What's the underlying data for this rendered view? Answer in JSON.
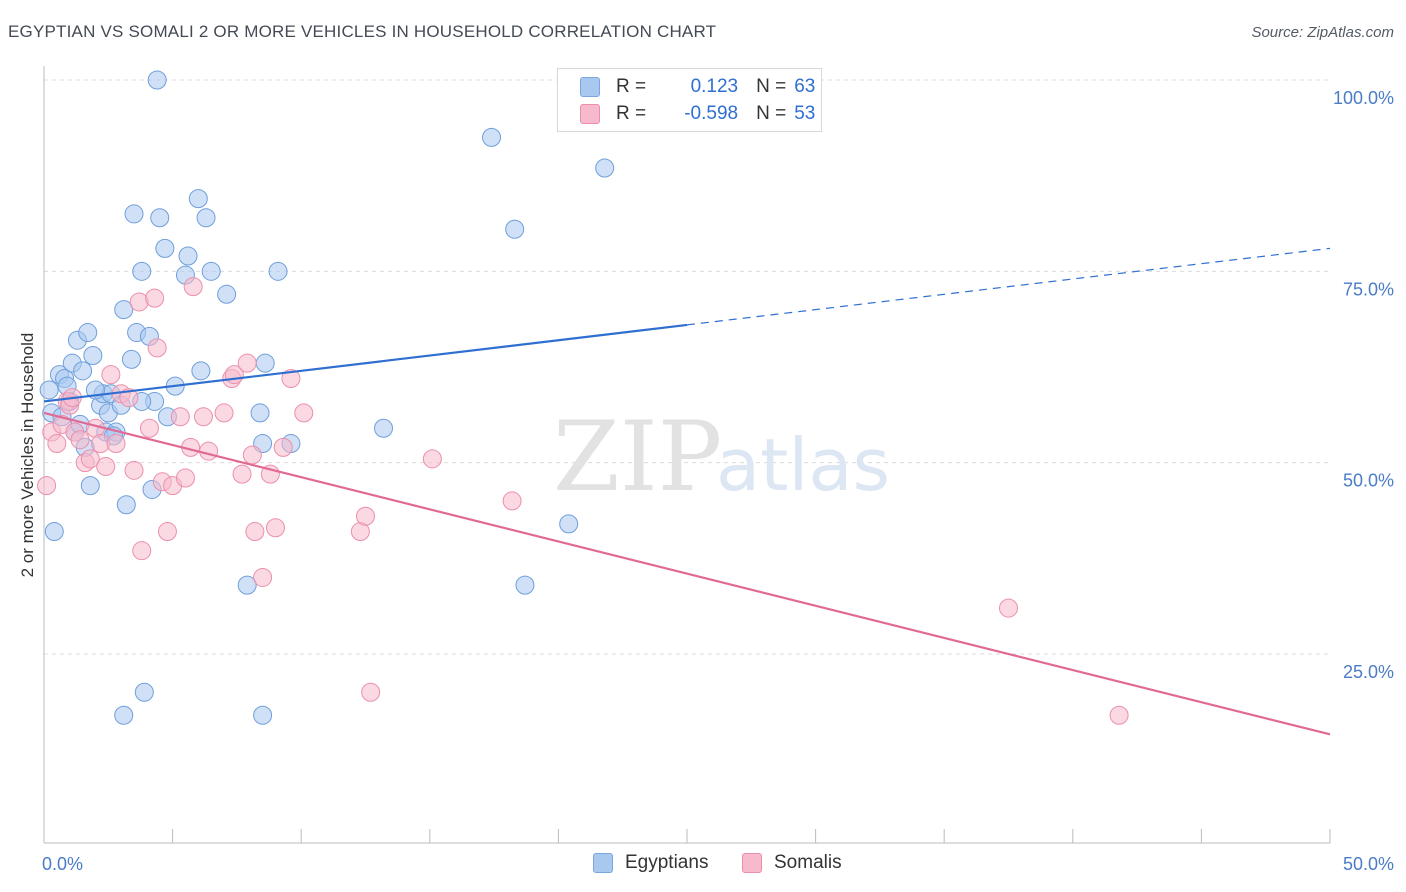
{
  "title": "EGYPTIAN VS SOMALI 2 OR MORE VEHICLES IN HOUSEHOLD CORRELATION CHART",
  "source": "Source: ZipAtlas.com",
  "watermark": {
    "zip": "ZIP",
    "atlas": "atlas"
  },
  "legend": {
    "rows": [
      {
        "r_label": "R =",
        "r_value": "0.123",
        "n_label": "N =",
        "n_value": "63",
        "color": "#a9c8f0",
        "border": "#7aa7e0"
      },
      {
        "r_label": "R =",
        "r_value": "-0.598",
        "n_label": "N =",
        "n_value": "53",
        "color": "#f7b9cc",
        "border": "#ec8fab"
      }
    ]
  },
  "chart_data": {
    "type": "scatter",
    "title": "EGYPTIAN VS SOMALI 2 OR MORE VEHICLES IN HOUSEHOLD CORRELATION CHART",
    "xlabel": "",
    "ylabel": "2 or more Vehicles in Household",
    "xlim": [
      0,
      50
    ],
    "ylim": [
      0,
      105
    ],
    "x_ticks": [
      "0.0%",
      "50.0%"
    ],
    "y_ticks": [
      {
        "value": 25,
        "label": "25.0%"
      },
      {
        "value": 50,
        "label": "50.0%"
      },
      {
        "value": 75,
        "label": "75.0%"
      },
      {
        "value": 100,
        "label": "100.0%"
      }
    ],
    "grid": true,
    "legend_position": "bottom",
    "series": [
      {
        "name": "Egyptians",
        "color": "#a9c8f0",
        "stroke": "#6f9fdb",
        "trend": {
          "x0": 0,
          "y0": 58,
          "x1": 25,
          "y1": 68,
          "dash_to_x": 50,
          "dash_to_y": 78,
          "color": "#2f6fd1"
        },
        "points": [
          [
            0.3,
            56.5
          ],
          [
            0.2,
            59.5
          ],
          [
            0.4,
            41
          ],
          [
            0.6,
            61.5
          ],
          [
            0.7,
            56
          ],
          [
            0.8,
            61
          ],
          [
            1.0,
            58
          ],
          [
            1.1,
            63
          ],
          [
            1.2,
            54
          ],
          [
            1.3,
            66
          ],
          [
            1.5,
            62
          ],
          [
            1.6,
            52
          ],
          [
            1.7,
            67
          ],
          [
            1.8,
            47
          ],
          [
            1.9,
            64
          ],
          [
            2.2,
            57.5
          ],
          [
            2.3,
            59
          ],
          [
            2.4,
            54
          ],
          [
            2.5,
            56.5
          ],
          [
            2.6,
            59
          ],
          [
            2.8,
            54
          ],
          [
            3.0,
            57.5
          ],
          [
            3.1,
            70
          ],
          [
            3.2,
            44.5
          ],
          [
            3.4,
            63.5
          ],
          [
            3.5,
            82.5
          ],
          [
            3.6,
            67
          ],
          [
            3.8,
            75
          ],
          [
            3.9,
            20
          ],
          [
            4.1,
            66.5
          ],
          [
            4.2,
            46.5
          ],
          [
            4.3,
            58
          ],
          [
            4.4,
            100
          ],
          [
            4.5,
            82
          ],
          [
            4.7,
            78
          ],
          [
            4.8,
            56
          ],
          [
            5.1,
            60
          ],
          [
            5.5,
            74.5
          ],
          [
            5.6,
            77
          ],
          [
            6.0,
            84.5
          ],
          [
            6.1,
            62
          ],
          [
            6.3,
            82
          ],
          [
            6.5,
            75
          ],
          [
            7.1,
            72
          ],
          [
            7.9,
            34
          ],
          [
            8.4,
            56.5
          ],
          [
            8.5,
            52.5
          ],
          [
            8.6,
            63
          ],
          [
            9.1,
            75
          ],
          [
            9.6,
            52.5
          ],
          [
            3.1,
            17
          ],
          [
            8.5,
            17
          ],
          [
            13.2,
            54.5
          ],
          [
            17.4,
            92.5
          ],
          [
            18.3,
            80.5
          ],
          [
            18.7,
            34
          ],
          [
            20.4,
            42
          ],
          [
            21.8,
            88.5
          ],
          [
            3.8,
            58
          ],
          [
            2.0,
            59.5
          ],
          [
            1.4,
            55
          ],
          [
            0.9,
            60
          ],
          [
            2.7,
            53.5
          ]
        ]
      },
      {
        "name": "Somalis",
        "color": "#f7b9cc",
        "stroke": "#ec8fab",
        "trend": {
          "x0": 0,
          "y0": 56.5,
          "x1": 50,
          "y1": 14.5,
          "color": "#e06a93"
        },
        "points": [
          [
            0.1,
            47
          ],
          [
            0.3,
            54
          ],
          [
            0.5,
            52.5
          ],
          [
            0.7,
            55
          ],
          [
            0.9,
            58
          ],
          [
            1.0,
            57.5
          ],
          [
            1.2,
            54
          ],
          [
            1.4,
            53
          ],
          [
            1.6,
            50
          ],
          [
            1.8,
            50.5
          ],
          [
            2.0,
            54.5
          ],
          [
            2.2,
            52.5
          ],
          [
            2.4,
            49.5
          ],
          [
            2.6,
            61.5
          ],
          [
            2.8,
            52.5
          ],
          [
            3.0,
            59
          ],
          [
            3.3,
            58.5
          ],
          [
            3.5,
            49
          ],
          [
            3.7,
            71
          ],
          [
            3.8,
            38.5
          ],
          [
            4.1,
            54.5
          ],
          [
            4.3,
            71.5
          ],
          [
            4.4,
            65
          ],
          [
            4.6,
            47.5
          ],
          [
            4.8,
            41
          ],
          [
            5.0,
            47
          ],
          [
            5.3,
            56
          ],
          [
            5.5,
            48
          ],
          [
            5.7,
            52
          ],
          [
            5.8,
            73
          ],
          [
            6.2,
            56
          ],
          [
            6.4,
            51.5
          ],
          [
            7.0,
            56.5
          ],
          [
            7.3,
            61
          ],
          [
            7.4,
            61.5
          ],
          [
            7.7,
            48.5
          ],
          [
            7.9,
            63
          ],
          [
            8.1,
            51
          ],
          [
            8.2,
            41
          ],
          [
            8.5,
            35
          ],
          [
            8.8,
            48.5
          ],
          [
            9.0,
            41.5
          ],
          [
            9.3,
            52
          ],
          [
            9.6,
            61
          ],
          [
            10.1,
            56.5
          ],
          [
            12.3,
            41
          ],
          [
            12.5,
            43
          ],
          [
            12.7,
            20
          ],
          [
            15.1,
            50.5
          ],
          [
            18.2,
            45
          ],
          [
            37.5,
            31
          ],
          [
            41.8,
            17
          ],
          [
            1.1,
            58.5
          ]
        ]
      }
    ]
  },
  "bottom_legend": [
    {
      "label": "Egyptians",
      "color": "#a9c8f0",
      "border": "#7aa7e0"
    },
    {
      "label": "Somalis",
      "color": "#f7b9cc",
      "border": "#ec8fab"
    }
  ]
}
